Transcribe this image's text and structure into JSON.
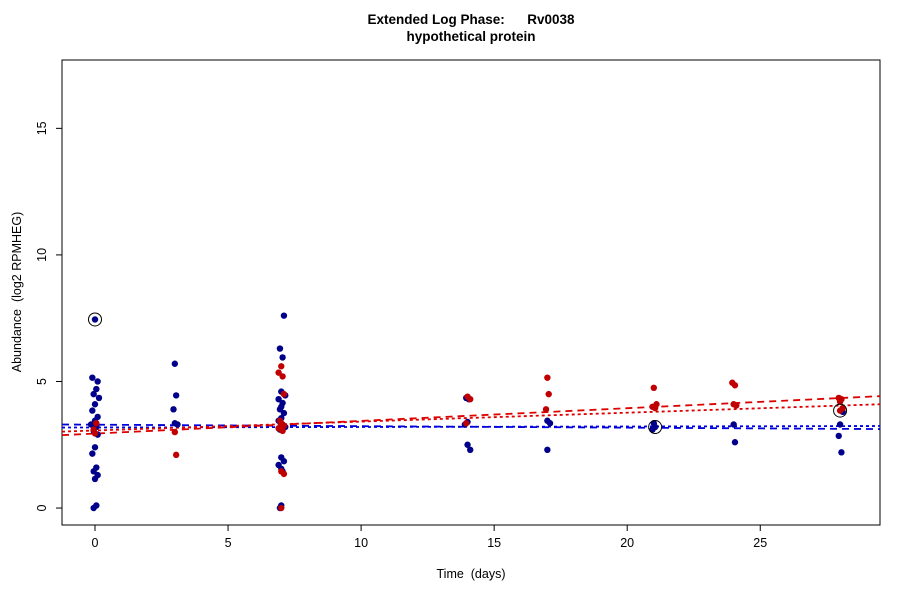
{
  "chart_data": {
    "type": "scatter",
    "title_line1": "Extended Log Phase:      Rv0038",
    "title_line2": "hypothetical protein",
    "xlabel": "Time  (days)",
    "ylabel": "Abundance  (log2 RPMHEG)",
    "xlim": [
      -1.24,
      29.5
    ],
    "ylim": [
      -0.67,
      17.7
    ],
    "xticks": [
      0,
      5,
      10,
      15,
      20,
      25
    ],
    "yticks": [
      0,
      5,
      10,
      15
    ],
    "point_radius": 3.2,
    "series": [
      {
        "name": "condition-blue",
        "color": "#00008B",
        "points": [
          [
            0,
            7.45
          ],
          [
            -0.1,
            5.15
          ],
          [
            0.1,
            5.0
          ],
          [
            0.05,
            4.7
          ],
          [
            -0.05,
            4.5
          ],
          [
            0.15,
            4.35
          ],
          [
            0,
            4.1
          ],
          [
            -0.1,
            3.85
          ],
          [
            0.1,
            3.6
          ],
          [
            0,
            3.45
          ],
          [
            -0.15,
            3.3
          ],
          [
            0.05,
            3.2
          ],
          [
            -0.05,
            3.05
          ],
          [
            0.1,
            2.9
          ],
          [
            0,
            2.4
          ],
          [
            -0.1,
            2.15
          ],
          [
            0.05,
            1.6
          ],
          [
            -0.05,
            1.45
          ],
          [
            0.1,
            1.3
          ],
          [
            0,
            1.15
          ],
          [
            0.05,
            0.1
          ],
          [
            -0.05,
            0
          ],
          [
            3,
            5.7
          ],
          [
            3.05,
            4.45
          ],
          [
            2.95,
            3.9
          ],
          [
            3,
            3.35
          ],
          [
            3.1,
            3.3
          ],
          [
            7.1,
            7.6
          ],
          [
            6.95,
            6.3
          ],
          [
            7.05,
            5.95
          ],
          [
            7,
            4.6
          ],
          [
            7.15,
            4.45
          ],
          [
            6.9,
            4.3
          ],
          [
            7.05,
            4.15
          ],
          [
            7,
            4.0
          ],
          [
            6.95,
            3.9
          ],
          [
            7.1,
            3.75
          ],
          [
            7,
            3.55
          ],
          [
            6.9,
            3.45
          ],
          [
            7.05,
            3.3
          ],
          [
            7.15,
            3.2
          ],
          [
            6.95,
            3.1
          ],
          [
            7,
            2.0
          ],
          [
            7.1,
            1.85
          ],
          [
            6.9,
            1.7
          ],
          [
            7,
            1.55
          ],
          [
            7.05,
            1.45
          ],
          [
            7,
            0.1
          ],
          [
            6.95,
            0
          ],
          [
            13.95,
            4.35
          ],
          [
            14.05,
            4.3
          ],
          [
            14,
            3.4
          ],
          [
            13.9,
            3.3
          ],
          [
            14,
            2.5
          ],
          [
            14.1,
            2.3
          ],
          [
            17,
            3.45
          ],
          [
            17.1,
            3.35
          ],
          [
            17,
            2.3
          ],
          [
            21,
            3.35
          ],
          [
            21.05,
            3.2
          ],
          [
            20.95,
            3.1
          ],
          [
            24,
            3.3
          ],
          [
            24.05,
            2.6
          ],
          [
            28,
            3.3
          ],
          [
            27.95,
            2.85
          ],
          [
            28.05,
            2.2
          ],
          [
            28.1,
            3.8
          ]
        ]
      },
      {
        "name": "condition-red",
        "color": "#C00000",
        "points": [
          [
            0.05,
            3.35
          ],
          [
            -0.05,
            3.1
          ],
          [
            0,
            2.95
          ],
          [
            3,
            3.0
          ],
          [
            3.05,
            2.1
          ],
          [
            7,
            5.6
          ],
          [
            6.9,
            5.35
          ],
          [
            7.05,
            5.2
          ],
          [
            7.1,
            4.5
          ],
          [
            6.95,
            3.45
          ],
          [
            7,
            3.35
          ],
          [
            7.1,
            3.25
          ],
          [
            6.9,
            3.15
          ],
          [
            7.05,
            3.05
          ],
          [
            7,
            1.45
          ],
          [
            7.1,
            1.35
          ],
          [
            7,
            0
          ],
          [
            14,
            4.4
          ],
          [
            14.1,
            4.3
          ],
          [
            13.95,
            3.35
          ],
          [
            17,
            5.15
          ],
          [
            17.05,
            4.5
          ],
          [
            16.95,
            3.9
          ],
          [
            21,
            4.75
          ],
          [
            21.1,
            4.1
          ],
          [
            20.95,
            4.0
          ],
          [
            21.05,
            3.95
          ],
          [
            23.95,
            4.95
          ],
          [
            24.05,
            4.85
          ],
          [
            24,
            4.1
          ],
          [
            24.1,
            4.05
          ],
          [
            27.95,
            4.35
          ],
          [
            28.05,
            4.3
          ],
          [
            28,
            4.2
          ],
          [
            28.1,
            3.95
          ],
          [
            28,
            3.85
          ]
        ]
      }
    ],
    "highlighted_points": {
      "color": "#000000",
      "radius": 6.5,
      "points": [
        [
          0,
          7.45
        ],
        [
          21.05,
          3.2
        ],
        [
          28,
          3.85
        ]
      ]
    },
    "trend_lines": [
      {
        "name": "blue-fit-1",
        "color": "#0000DD",
        "dash": "7,5",
        "x": [
          -1.24,
          29.5
        ],
        "y": [
          3.3,
          3.12
        ]
      },
      {
        "name": "blue-fit-2",
        "color": "#0000DD",
        "dash": "3,3",
        "x": [
          -1.24,
          29.5
        ],
        "y": [
          3.18,
          3.24
        ]
      },
      {
        "name": "red-fit-1",
        "color": "#DD0000",
        "dash": "7,5",
        "x": [
          -1.24,
          29.5
        ],
        "y": [
          2.88,
          4.42
        ]
      },
      {
        "name": "red-fit-2",
        "color": "#DD0000",
        "dash": "3,3",
        "x": [
          -1.24,
          29.5
        ],
        "y": [
          3.02,
          4.1
        ]
      }
    ],
    "legend": "none",
    "grid": false
  }
}
